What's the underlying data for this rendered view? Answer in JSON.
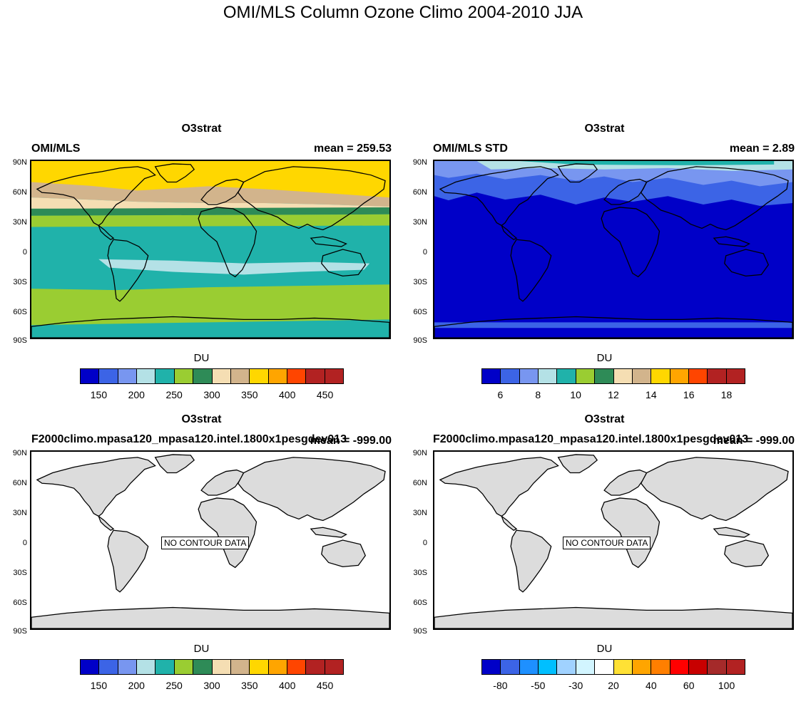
{
  "main_title": "OMI/MLS Column Ozone Climo 2004-2010 JJA",
  "lat_labels": [
    "90N",
    "60N",
    "30N",
    "0",
    "30S",
    "60S",
    "90S"
  ],
  "panels": [
    {
      "center": "O3strat",
      "left": "OMI/MLS",
      "right": "mean = 259.53",
      "units": "DU",
      "colorbar": {
        "colors": [
          "#0000c8",
          "#3c64e6",
          "#7896f0",
          "#b4e1e6",
          "#20b2aa",
          "#9acd32",
          "#2e8b57",
          "#f5deb3",
          "#d2b48c",
          "#ffd700",
          "#ffa500",
          "#ff4500",
          "#b22222",
          "#b22222"
        ],
        "labels": [
          "150",
          "200",
          "250",
          "300",
          "350",
          "400",
          "450"
        ]
      }
    },
    {
      "center": "O3strat",
      "left": "OMI/MLS STD",
      "right": "mean =   2.89",
      "units": "DU",
      "colorbar": {
        "colors": [
          "#0000c8",
          "#3c64e6",
          "#7896f0",
          "#b4e1e6",
          "#20b2aa",
          "#9acd32",
          "#2e8b57",
          "#f5deb3",
          "#d2b48c",
          "#ffd700",
          "#ffa500",
          "#ff4500",
          "#b22222",
          "#b22222"
        ],
        "labels": [
          "6",
          "8",
          "10",
          "12",
          "14",
          "16",
          "18"
        ]
      }
    },
    {
      "center": "O3strat",
      "left": "F2000climo.mpasa120_mpasa120.intel.1800x1pesgdev013",
      "right": "mean = -999.00",
      "units": "DU",
      "no_data": "NO CONTOUR DATA",
      "colorbar": {
        "colors": [
          "#0000c8",
          "#3c64e6",
          "#7896f0",
          "#b4e1e6",
          "#20b2aa",
          "#9acd32",
          "#2e8b57",
          "#f5deb3",
          "#d2b48c",
          "#ffd700",
          "#ffa500",
          "#ff4500",
          "#b22222",
          "#b22222"
        ],
        "labels": [
          "150",
          "200",
          "250",
          "300",
          "350",
          "400",
          "450"
        ]
      }
    },
    {
      "center": "O3strat",
      "left": "F2000climo.mpasa120_mpasa120.intel.1800x1pesgdev013",
      "right": "mean = -999.00",
      "units": "DU",
      "no_data": "NO CONTOUR DATA",
      "colorbar": {
        "colors": [
          "#0000c8",
          "#3c64e6",
          "#1e90ff",
          "#00bfff",
          "#a0d2ff",
          "#d2f5ff",
          "#ffffff",
          "#ffe135",
          "#ffa500",
          "#ff7f00",
          "#ff0000",
          "#c80000",
          "#a52a2a",
          "#b22222"
        ],
        "labels": [
          "-80",
          "-50",
          "-30",
          "20",
          "40",
          "60",
          "100"
        ]
      }
    }
  ]
}
